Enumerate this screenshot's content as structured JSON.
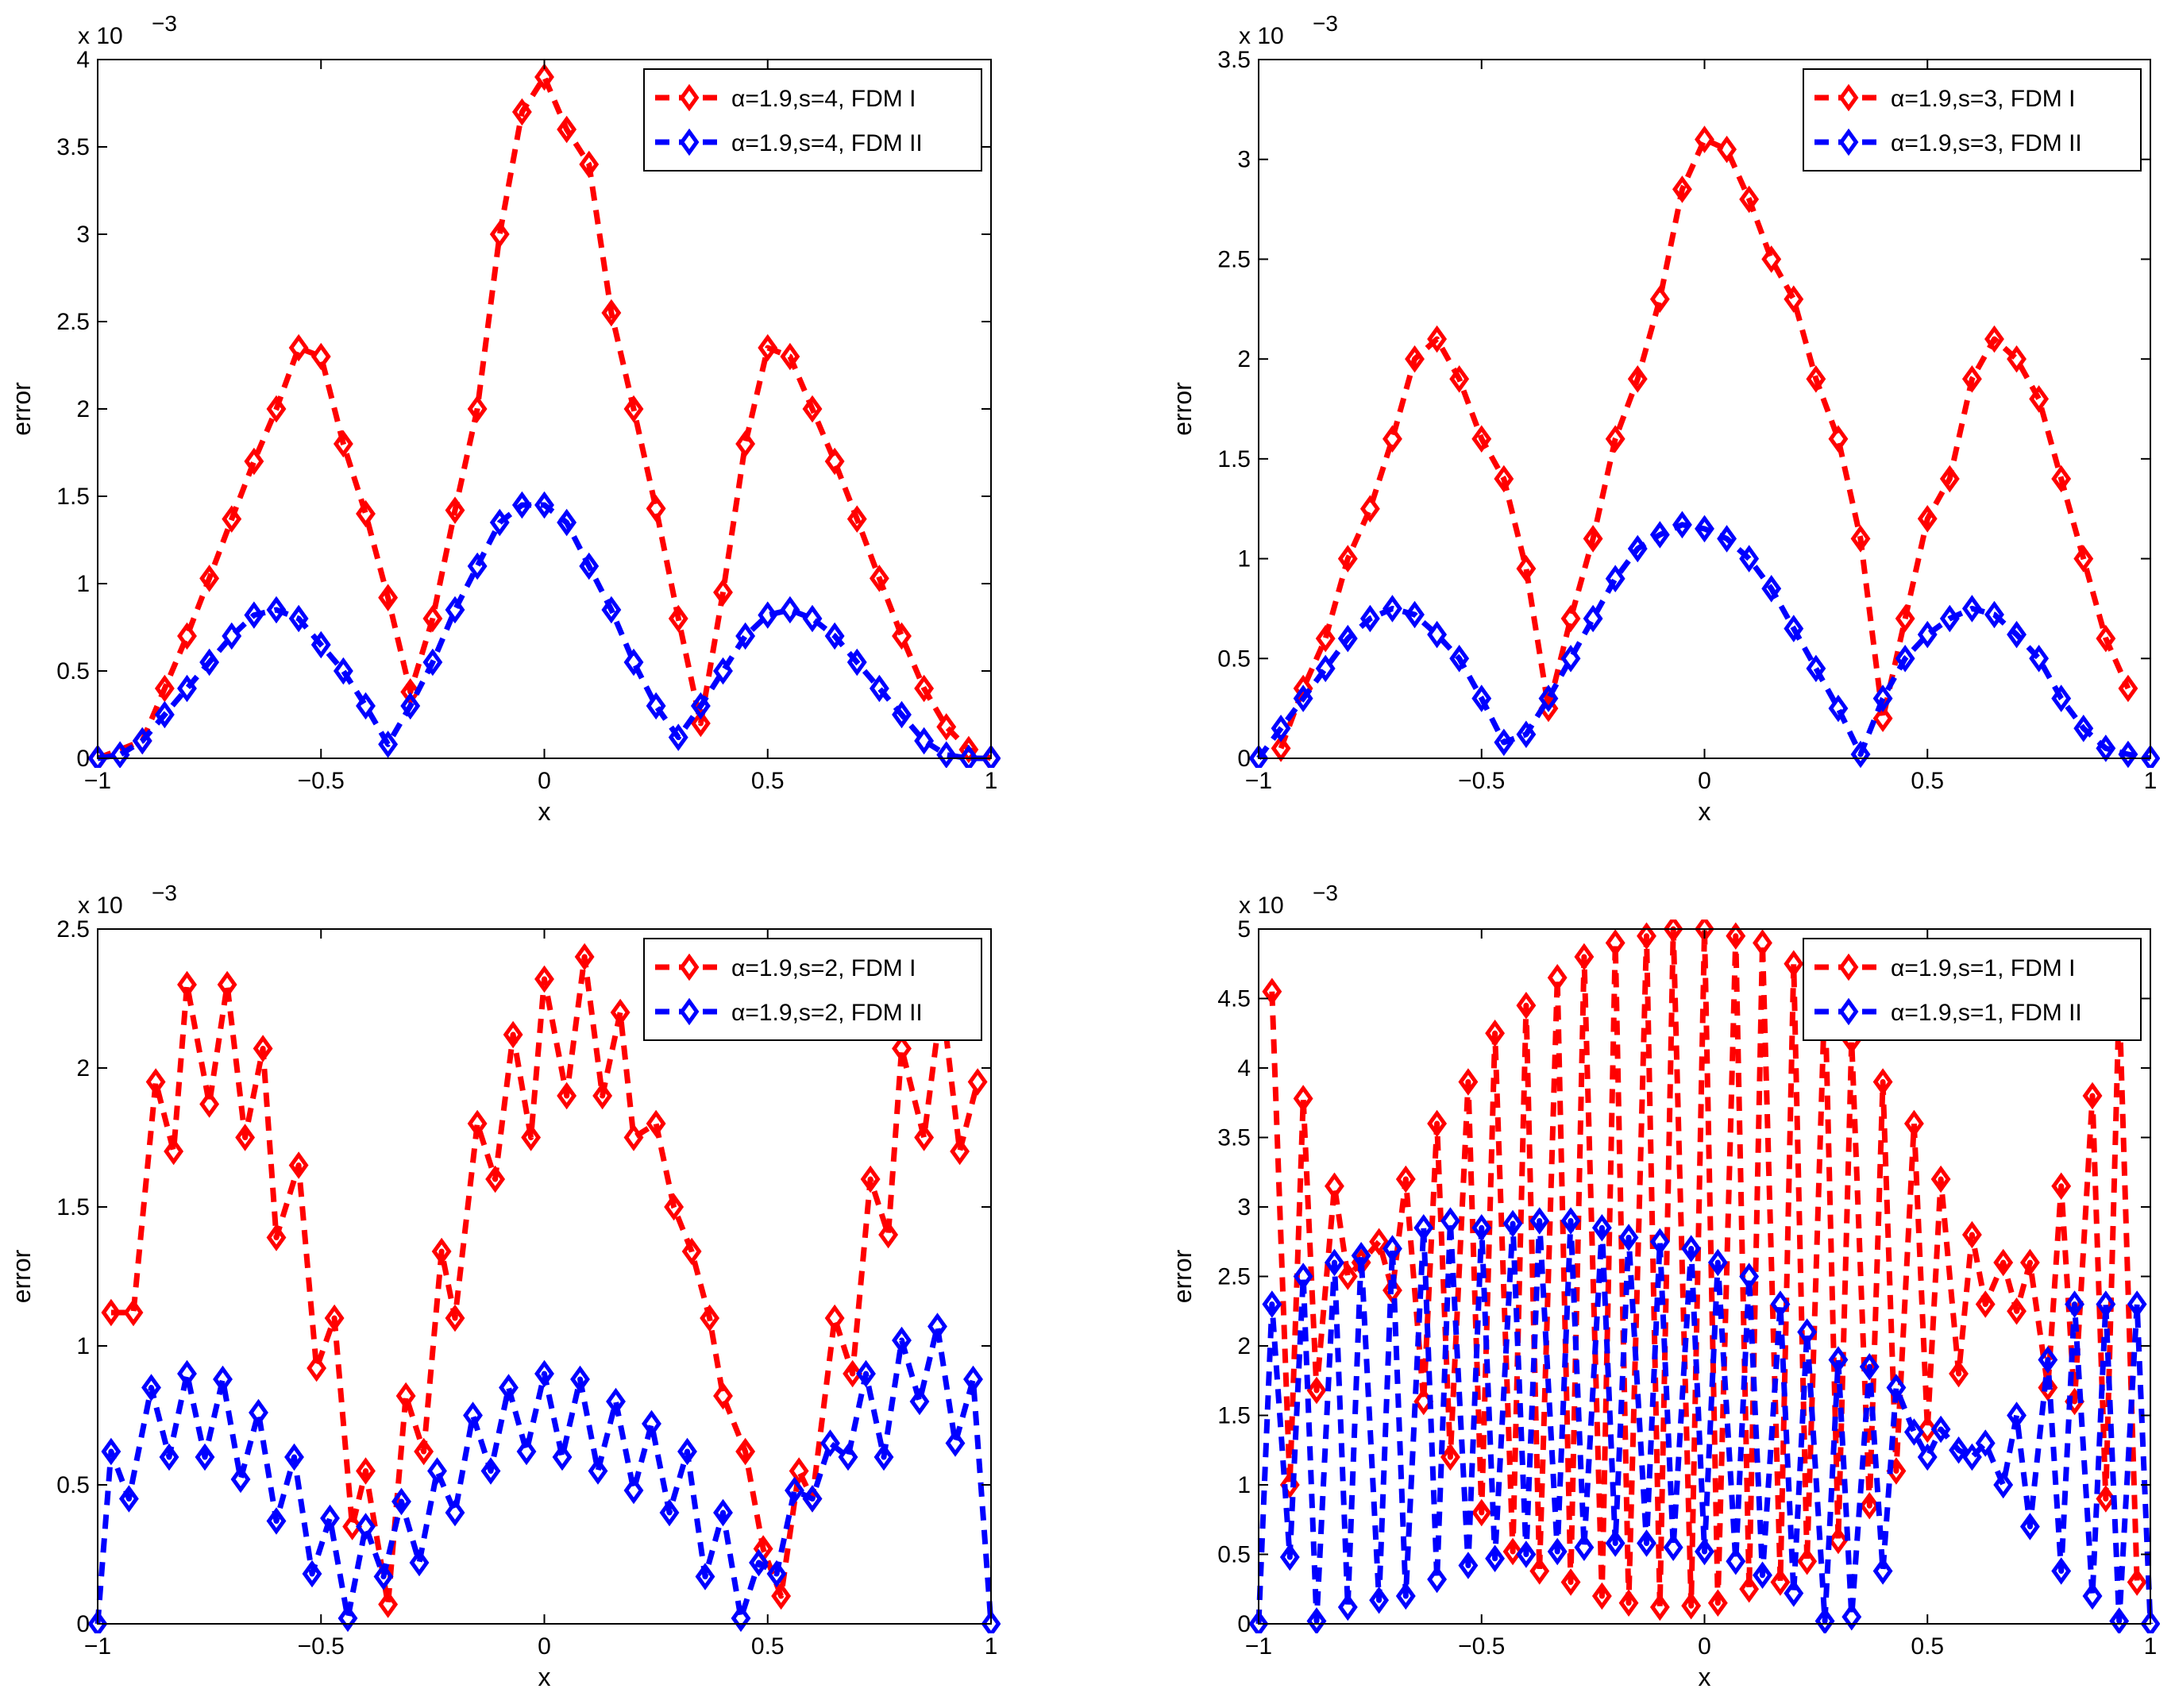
{
  "figure": {
    "panel_count": 4
  },
  "chart_data": [
    {
      "type": "line",
      "xlabel": "x",
      "ylabel": "error",
      "xlim": [
        -1,
        1
      ],
      "ylim": [
        0,
        4
      ],
      "xticks": [
        -1,
        -0.5,
        0,
        0.5,
        1
      ],
      "xtick_labels": [
        "−1",
        "−0.5",
        "0",
        "0.5",
        "1"
      ],
      "yticks": [
        0,
        0.5,
        1,
        1.5,
        2,
        2.5,
        3,
        3.5,
        4
      ],
      "ytick_labels": [
        "0",
        "0.5",
        "1",
        "1.5",
        "2",
        "2.5",
        "3",
        "3.5",
        "4"
      ],
      "exponent_label": "x 10",
      "exponent_power": "−3",
      "legend_position": "top-right",
      "series": [
        {
          "name": "α=1.9,s=4, FDM I",
          "color": "#ff0000",
          "x": [
            -1.0,
            -0.9,
            -0.85,
            -0.8,
            -0.75,
            -0.7,
            -0.65,
            -0.6,
            -0.55,
            -0.5,
            -0.45,
            -0.4,
            -0.35,
            -0.3,
            -0.25,
            -0.2,
            -0.15,
            -0.1,
            -0.05,
            0.0,
            0.05,
            0.1,
            0.15,
            0.2,
            0.25,
            0.3,
            0.35,
            0.4,
            0.45,
            0.5,
            0.55,
            0.6,
            0.65,
            0.7,
            0.75,
            0.8,
            0.85,
            0.9,
            0.95,
            1.0
          ],
          "values": [
            0.0,
            0.1,
            0.4,
            0.7,
            1.03,
            1.37,
            1.7,
            2.0,
            2.35,
            2.3,
            1.8,
            1.4,
            0.92,
            0.38,
            0.8,
            1.42,
            2.0,
            3.0,
            3.7,
            3.9,
            3.6,
            3.4,
            2.55,
            2.0,
            1.43,
            0.8,
            0.2,
            0.95,
            1.8,
            2.35,
            2.3,
            2.0,
            1.7,
            1.37,
            1.03,
            0.7,
            0.4,
            0.18,
            0.05,
            0.0
          ]
        },
        {
          "name": "α=1.9,s=4, FDM II",
          "color": "#0000ff",
          "x": [
            -1.0,
            -0.95,
            -0.9,
            -0.85,
            -0.8,
            -0.75,
            -0.7,
            -0.65,
            -0.6,
            -0.55,
            -0.5,
            -0.45,
            -0.4,
            -0.35,
            -0.3,
            -0.25,
            -0.2,
            -0.15,
            -0.1,
            -0.05,
            0.0,
            0.05,
            0.1,
            0.15,
            0.2,
            0.25,
            0.3,
            0.35,
            0.4,
            0.45,
            0.5,
            0.55,
            0.6,
            0.65,
            0.7,
            0.75,
            0.8,
            0.85,
            0.9,
            0.95,
            1.0
          ],
          "values": [
            0.0,
            0.02,
            0.1,
            0.25,
            0.4,
            0.55,
            0.7,
            0.82,
            0.85,
            0.8,
            0.65,
            0.5,
            0.3,
            0.08,
            0.3,
            0.55,
            0.85,
            1.1,
            1.35,
            1.45,
            1.45,
            1.35,
            1.1,
            0.85,
            0.55,
            0.3,
            0.12,
            0.3,
            0.5,
            0.7,
            0.82,
            0.85,
            0.8,
            0.7,
            0.55,
            0.4,
            0.25,
            0.1,
            0.02,
            0.0,
            0.0
          ]
        }
      ]
    },
    {
      "type": "line",
      "xlabel": "x",
      "ylabel": "error",
      "xlim": [
        -1,
        1
      ],
      "ylim": [
        0,
        3.5
      ],
      "xticks": [
        -1,
        -0.5,
        0,
        0.5,
        1
      ],
      "xtick_labels": [
        "−1",
        "−0.5",
        "0",
        "0.5",
        "1"
      ],
      "yticks": [
        0,
        0.5,
        1,
        1.5,
        2,
        2.5,
        3,
        3.5
      ],
      "ytick_labels": [
        "0",
        "0.5",
        "1",
        "1.5",
        "2",
        "2.5",
        "3",
        "3.5"
      ],
      "exponent_label": "x 10",
      "exponent_power": "−3",
      "legend_position": "top-right",
      "series": [
        {
          "name": "α=1.9,s=3, FDM I",
          "color": "#ff0000",
          "x": [
            -0.95,
            -0.9,
            -0.85,
            -0.8,
            -0.75,
            -0.7,
            -0.65,
            -0.6,
            -0.55,
            -0.5,
            -0.45,
            -0.4,
            -0.35,
            -0.3,
            -0.25,
            -0.2,
            -0.15,
            -0.1,
            -0.05,
            0.0,
            0.05,
            0.1,
            0.15,
            0.2,
            0.25,
            0.3,
            0.35,
            0.4,
            0.45,
            0.5,
            0.55,
            0.6,
            0.65,
            0.7,
            0.75,
            0.8,
            0.85,
            0.9,
            0.95
          ],
          "values": [
            0.05,
            0.35,
            0.6,
            1.0,
            1.25,
            1.6,
            2.0,
            2.1,
            1.9,
            1.6,
            1.4,
            0.95,
            0.25,
            0.7,
            1.1,
            1.6,
            1.9,
            2.3,
            2.85,
            3.1,
            3.05,
            2.8,
            2.5,
            2.3,
            1.9,
            1.6,
            1.1,
            0.2,
            0.7,
            1.2,
            1.4,
            1.9,
            2.1,
            2.0,
            1.8,
            1.4,
            1.0,
            0.6,
            0.35
          ]
        },
        {
          "name": "α=1.9,s=3, FDM II",
          "color": "#0000ff",
          "x": [
            -1.0,
            -0.95,
            -0.9,
            -0.85,
            -0.8,
            -0.75,
            -0.7,
            -0.65,
            -0.6,
            -0.55,
            -0.5,
            -0.45,
            -0.4,
            -0.35,
            -0.3,
            -0.25,
            -0.2,
            -0.15,
            -0.1,
            -0.05,
            0.0,
            0.05,
            0.1,
            0.15,
            0.2,
            0.25,
            0.3,
            0.35,
            0.4,
            0.45,
            0.5,
            0.55,
            0.6,
            0.65,
            0.7,
            0.75,
            0.8,
            0.85,
            0.9,
            0.95,
            1.0
          ],
          "values": [
            0.0,
            0.15,
            0.3,
            0.45,
            0.6,
            0.7,
            0.75,
            0.72,
            0.62,
            0.5,
            0.3,
            0.08,
            0.12,
            0.3,
            0.5,
            0.7,
            0.9,
            1.05,
            1.12,
            1.17,
            1.15,
            1.1,
            1.0,
            0.85,
            0.65,
            0.45,
            0.25,
            0.02,
            0.3,
            0.5,
            0.62,
            0.7,
            0.75,
            0.72,
            0.62,
            0.5,
            0.3,
            0.15,
            0.05,
            0.02,
            0.0
          ]
        }
      ]
    },
    {
      "type": "line",
      "xlabel": "x",
      "ylabel": "error",
      "xlim": [
        -1,
        1
      ],
      "ylim": [
        0,
        2.5
      ],
      "xticks": [
        -1,
        -0.5,
        0,
        0.5,
        1
      ],
      "xtick_labels": [
        "−1",
        "−0.5",
        "0",
        "0.5",
        "1"
      ],
      "yticks": [
        0,
        0.5,
        1,
        1.5,
        2,
        2.5
      ],
      "ytick_labels": [
        "0",
        "0.5",
        "1",
        "1.5",
        "2",
        "2.5"
      ],
      "exponent_label": "x 10",
      "exponent_power": "−3",
      "legend_position": "top-right",
      "series": [
        {
          "name": "α=1.9,s=2, FDM I",
          "color": "#ff0000",
          "x": [
            -0.97,
            -0.92,
            -0.87,
            -0.83,
            -0.8,
            -0.75,
            -0.71,
            -0.67,
            -0.63,
            -0.6,
            -0.55,
            -0.51,
            -0.47,
            -0.43,
            -0.4,
            -0.35,
            -0.31,
            -0.27,
            -0.23,
            -0.2,
            -0.15,
            -0.11,
            -0.07,
            -0.03,
            0.0,
            0.05,
            0.09,
            0.13,
            0.17,
            0.2,
            0.25,
            0.29,
            0.33,
            0.37,
            0.4,
            0.45,
            0.49,
            0.53,
            0.57,
            0.6,
            0.65,
            0.69,
            0.73,
            0.77,
            0.8,
            0.85,
            0.89,
            0.93,
            0.97
          ],
          "values": [
            1.12,
            1.12,
            1.95,
            1.7,
            2.3,
            1.87,
            2.3,
            1.75,
            2.07,
            1.39,
            1.65,
            0.92,
            1.1,
            0.35,
            0.55,
            0.07,
            0.82,
            0.62,
            1.34,
            1.1,
            1.8,
            1.6,
            2.12,
            1.75,
            2.32,
            1.9,
            2.4,
            1.9,
            2.2,
            1.75,
            1.8,
            1.5,
            1.34,
            1.1,
            0.82,
            0.62,
            0.27,
            0.1,
            0.55,
            0.45,
            1.1,
            0.9,
            1.6,
            1.4,
            2.07,
            1.75,
            2.25,
            1.7,
            1.95
          ]
        },
        {
          "name": "α=1.9,s=2, FDM II",
          "color": "#0000ff",
          "x": [
            -1.0,
            -0.97,
            -0.93,
            -0.88,
            -0.84,
            -0.8,
            -0.76,
            -0.72,
            -0.68,
            -0.64,
            -0.6,
            -0.56,
            -0.52,
            -0.48,
            -0.44,
            -0.4,
            -0.36,
            -0.32,
            -0.28,
            -0.24,
            -0.2,
            -0.16,
            -0.12,
            -0.08,
            -0.04,
            0.0,
            0.04,
            0.08,
            0.12,
            0.16,
            0.2,
            0.24,
            0.28,
            0.32,
            0.36,
            0.4,
            0.44,
            0.48,
            0.52,
            0.56,
            0.6,
            0.64,
            0.68,
            0.72,
            0.76,
            0.8,
            0.84,
            0.88,
            0.92,
            0.96,
            1.0
          ],
          "values": [
            0.0,
            0.62,
            0.45,
            0.85,
            0.6,
            0.9,
            0.6,
            0.88,
            0.52,
            0.76,
            0.37,
            0.6,
            0.18,
            0.38,
            0.02,
            0.35,
            0.17,
            0.44,
            0.22,
            0.55,
            0.4,
            0.75,
            0.55,
            0.85,
            0.62,
            0.9,
            0.6,
            0.88,
            0.55,
            0.8,
            0.48,
            0.72,
            0.4,
            0.62,
            0.17,
            0.4,
            0.02,
            0.22,
            0.18,
            0.48,
            0.45,
            0.65,
            0.6,
            0.9,
            0.6,
            1.02,
            0.8,
            1.07,
            0.65,
            0.88,
            0.0
          ]
        }
      ]
    },
    {
      "type": "line",
      "xlabel": "x",
      "ylabel": "error",
      "xlim": [
        -1,
        1
      ],
      "ylim": [
        0,
        5
      ],
      "xticks": [
        -1,
        -0.5,
        0,
        0.5,
        1
      ],
      "xtick_labels": [
        "−1",
        "−0.5",
        "0",
        "0.5",
        "1"
      ],
      "yticks": [
        0,
        0.5,
        1,
        1.5,
        2,
        2.5,
        3,
        3.5,
        4,
        4.5,
        5
      ],
      "ytick_labels": [
        "0",
        "0.5",
        "1",
        "1.5",
        "2",
        "2.5",
        "3",
        "3.5",
        "4",
        "4.5",
        "5"
      ],
      "exponent_label": "x 10",
      "exponent_power": "−3",
      "legend_position": "top-right",
      "series": [
        {
          "name": "α=1.9,s=1, FDM I",
          "color": "#ff0000",
          "x": [
            -0.97,
            -0.93,
            -0.9,
            -0.87,
            -0.83,
            -0.8,
            -0.77,
            -0.73,
            -0.7,
            -0.67,
            -0.63,
            -0.6,
            -0.57,
            -0.53,
            -0.5,
            -0.47,
            -0.43,
            -0.4,
            -0.37,
            -0.33,
            -0.3,
            -0.27,
            -0.23,
            -0.2,
            -0.17,
            -0.13,
            -0.1,
            -0.07,
            -0.03,
            0.0,
            0.03,
            0.07,
            0.1,
            0.13,
            0.17,
            0.2,
            0.23,
            0.27,
            0.3,
            0.33,
            0.37,
            0.4,
            0.43,
            0.47,
            0.5,
            0.53,
            0.57,
            0.6,
            0.63,
            0.67,
            0.7,
            0.73,
            0.77,
            0.8,
            0.83,
            0.87,
            0.9,
            0.93,
            0.97
          ],
          "values": [
            4.55,
            1.0,
            3.78,
            1.68,
            3.15,
            2.5,
            2.6,
            2.75,
            2.4,
            3.2,
            1.6,
            3.6,
            1.2,
            3.9,
            0.8,
            4.25,
            0.52,
            4.45,
            0.38,
            4.65,
            0.3,
            4.8,
            0.2,
            4.9,
            0.15,
            4.95,
            0.12,
            5.0,
            0.13,
            5.0,
            0.15,
            4.95,
            0.25,
            4.9,
            0.3,
            4.75,
            0.45,
            4.55,
            0.6,
            4.2,
            0.85,
            3.9,
            1.1,
            3.6,
            1.4,
            3.2,
            1.8,
            2.8,
            2.3,
            2.6,
            2.25,
            2.6,
            1.7,
            3.15,
            1.6,
            3.8,
            0.9,
            4.5,
            0.3
          ]
        },
        {
          "name": "α=1.9,s=1, FDM II",
          "color": "#0000ff",
          "x": [
            -1.0,
            -0.97,
            -0.93,
            -0.9,
            -0.87,
            -0.83,
            -0.8,
            -0.77,
            -0.73,
            -0.7,
            -0.67,
            -0.63,
            -0.6,
            -0.57,
            -0.53,
            -0.5,
            -0.47,
            -0.43,
            -0.4,
            -0.37,
            -0.33,
            -0.3,
            -0.27,
            -0.23,
            -0.2,
            -0.17,
            -0.13,
            -0.1,
            -0.07,
            -0.03,
            0.0,
            0.03,
            0.07,
            0.1,
            0.13,
            0.17,
            0.2,
            0.23,
            0.27,
            0.3,
            0.33,
            0.37,
            0.4,
            0.43,
            0.47,
            0.5,
            0.53,
            0.57,
            0.6,
            0.63,
            0.67,
            0.7,
            0.73,
            0.77,
            0.8,
            0.83,
            0.87,
            0.9,
            0.93,
            0.97,
            1.0
          ],
          "values": [
            0.0,
            2.3,
            0.48,
            2.5,
            0.02,
            2.6,
            0.12,
            2.65,
            0.17,
            2.7,
            0.2,
            2.85,
            0.32,
            2.9,
            0.42,
            2.85,
            0.47,
            2.88,
            0.5,
            2.9,
            0.52,
            2.9,
            0.55,
            2.85,
            0.58,
            2.78,
            0.58,
            2.75,
            0.55,
            2.7,
            0.52,
            2.6,
            0.45,
            2.5,
            0.35,
            2.3,
            0.22,
            2.1,
            0.02,
            1.9,
            0.05,
            1.85,
            0.38,
            1.7,
            1.38,
            1.2,
            1.4,
            1.25,
            1.2,
            1.3,
            1.0,
            1.5,
            0.7,
            1.9,
            0.38,
            2.3,
            0.2,
            2.3,
            0.02,
            2.3,
            0.0
          ]
        }
      ]
    }
  ]
}
